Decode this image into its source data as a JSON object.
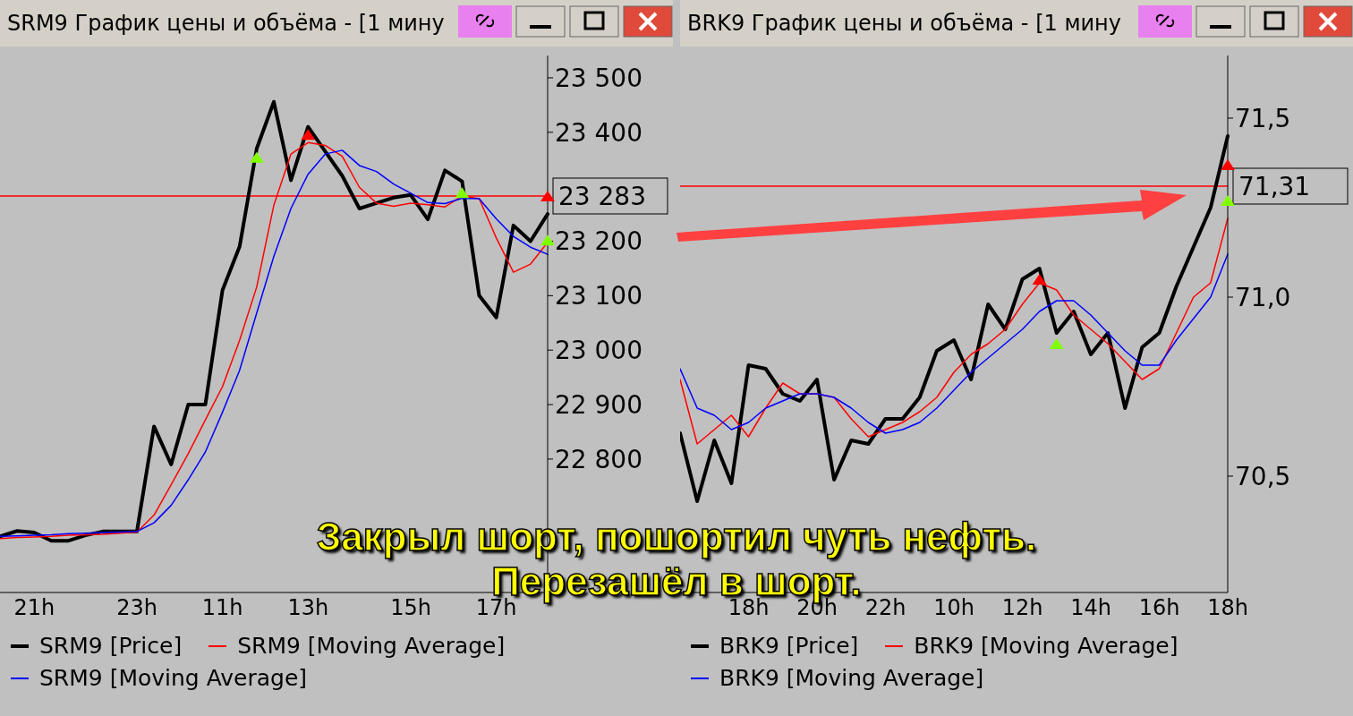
{
  "chart_data": [
    {
      "type": "line",
      "title": "SRM9 График цены и объёма - [1 мину",
      "categories": [
        null,
        null,
        "21h",
        null,
        null,
        null,
        null,
        null,
        "23h",
        null,
        null,
        null,
        null,
        "11h",
        null,
        null,
        null,
        null,
        "13h",
        null,
        null,
        null,
        null,
        null,
        "15h",
        null,
        null,
        null,
        null,
        "17h",
        null,
        null,
        null
      ],
      "ylim": [
        22555,
        23541
      ],
      "yticks": [
        {
          "value": 23500,
          "label": "23 500"
        },
        {
          "value": 23400,
          "label": "23 400"
        },
        {
          "value": 23200,
          "label": "23 200"
        },
        {
          "value": 23100,
          "label": "23 100"
        },
        {
          "value": 23000,
          "label": "23 000"
        },
        {
          "value": 22900,
          "label": "22 900"
        },
        {
          "value": 22800,
          "label": "22 800"
        }
      ],
      "legend": "bottom",
      "ref_lines": [
        {
          "axis": "y",
          "value": 23283,
          "label": "23 283",
          "color": "#ff0000"
        }
      ],
      "annotations": [
        "Закрыл шорт, пошортил чуть нефть.",
        "Перезашёл в шорт."
      ],
      "series": [
        {
          "name": "SRM9 [Price]",
          "color": "#000000",
          "values": [
            22658,
            22668,
            22665,
            22650,
            22650,
            22660,
            22667,
            22667,
            22667,
            22860,
            22790,
            22900,
            22900,
            23110,
            23190,
            23370,
            23456,
            23312,
            23410,
            23365,
            23320,
            23260,
            23270,
            23280,
            23285,
            23240,
            23330,
            23310,
            23100,
            23060,
            23229,
            23200,
            23250
          ]
        },
        {
          "name": "SRM9 [Moving Average]",
          "color": "#ff0000",
          "values": [
            22654,
            22656,
            22657,
            22658,
            22660,
            22661,
            22662,
            22664,
            22666,
            22697,
            22753,
            22810,
            22872,
            22933,
            23018,
            23116,
            23266,
            23360,
            23381,
            23376,
            23356,
            23299,
            23270,
            23264,
            23270,
            23267,
            23263,
            23283,
            23278,
            23206,
            23143,
            23158,
            23198
          ]
        },
        {
          "name": "SRM9 [Moving Average]",
          "color": "#0000ff",
          "values": [
            22658,
            22659,
            22660,
            22661,
            22663,
            22664,
            22665,
            22666,
            22667,
            22683,
            22715,
            22762,
            22813,
            22886,
            22963,
            23068,
            23172,
            23260,
            23323,
            23360,
            23367,
            23339,
            23328,
            23305,
            23288,
            23271,
            23269,
            23279,
            23278,
            23241,
            23209,
            23189,
            23176
          ]
        },
        {
          "type": "scatter",
          "marker": "triangle",
          "color": "#80ff00",
          "values": [
            null,
            null,
            null,
            null,
            null,
            null,
            null,
            null,
            null,
            null,
            null,
            null,
            null,
            null,
            null,
            23354,
            null,
            null,
            null,
            null,
            null,
            null,
            null,
            null,
            null,
            null,
            null,
            23289,
            null,
            null,
            null,
            null,
            23202
          ]
        },
        {
          "type": "scatter",
          "marker": "triangle",
          "color": "#ff0000",
          "values": [
            null,
            null,
            null,
            null,
            null,
            null,
            null,
            null,
            null,
            null,
            null,
            null,
            null,
            null,
            null,
            null,
            null,
            null,
            23396,
            null,
            null,
            null,
            null,
            null,
            null,
            null,
            null,
            null,
            null,
            null,
            null,
            null,
            23283
          ]
        }
      ]
    },
    {
      "type": "line",
      "title": "BRK9 График цены и объёма - [1 мину",
      "categories": [
        null,
        null,
        null,
        null,
        "18h",
        null,
        null,
        null,
        "20h",
        null,
        null,
        null,
        "22h",
        null,
        null,
        null,
        "10h",
        null,
        null,
        null,
        "12h",
        null,
        null,
        null,
        "14h",
        null,
        null,
        null,
        "16h",
        null,
        null,
        null,
        "18h"
      ],
      "ylim": [
        70.175,
        71.675
      ],
      "yticks": [
        {
          "value": 71.5,
          "label": "71,5"
        },
        {
          "value": 71,
          "label": "71,0"
        },
        {
          "value": 70.5,
          "label": "70,5"
        }
      ],
      "legend": "bottom",
      "ref_lines": [
        {
          "axis": "y",
          "value": 71.31,
          "label": "71,31",
          "color": "#ff0000"
        }
      ],
      "series": [
        {
          "name": "BRK9 [Price]",
          "color": "#000000",
          "values": [
            70.62,
            70.43,
            70.6,
            70.48,
            70.81,
            70.8,
            70.73,
            70.71,
            70.77,
            70.49,
            70.6,
            70.59,
            70.66,
            70.66,
            70.72,
            70.85,
            70.88,
            70.77,
            70.98,
            70.91,
            71.05,
            71.08,
            70.9,
            70.96,
            70.84,
            70.9,
            70.69,
            70.86,
            70.9,
            71.03,
            71.14,
            71.25,
            71.45
          ]
        },
        {
          "name": "BRK9 [Moving Average]",
          "color": "#ff0000",
          "values": [
            70.77,
            70.59,
            70.63,
            70.67,
            70.61,
            70.69,
            70.76,
            70.73,
            70.73,
            70.72,
            70.66,
            70.61,
            70.63,
            70.65,
            70.68,
            70.72,
            70.79,
            70.84,
            70.87,
            70.91,
            70.98,
            71.04,
            71.02,
            70.95,
            70.91,
            70.87,
            70.82,
            70.77,
            70.8,
            70.9,
            71,
            71.04,
            71.22
          ]
        },
        {
          "name": "BRK9 [Moving Average]",
          "color": "#0000ff",
          "values": [
            70.8,
            70.69,
            70.67,
            70.63,
            70.65,
            70.69,
            70.71,
            70.73,
            70.73,
            70.72,
            70.69,
            70.65,
            70.62,
            70.63,
            70.65,
            70.69,
            70.74,
            70.79,
            70.83,
            70.87,
            70.91,
            70.96,
            70.99,
            70.99,
            70.95,
            70.9,
            70.85,
            70.81,
            70.81,
            70.88,
            70.94,
            71,
            71.12
          ]
        },
        {
          "type": "scatter",
          "marker": "triangle",
          "color": "#80ff00",
          "values": [
            null,
            null,
            null,
            null,
            null,
            null,
            null,
            null,
            null,
            null,
            null,
            null,
            null,
            null,
            null,
            null,
            null,
            null,
            null,
            null,
            null,
            null,
            70.87,
            null,
            null,
            null,
            null,
            null,
            null,
            null,
            null,
            null,
            71.27
          ]
        },
        {
          "type": "scatter",
          "marker": "triangle",
          "color": "#ff0000",
          "values": [
            null,
            null,
            null,
            null,
            null,
            null,
            null,
            null,
            null,
            null,
            null,
            null,
            null,
            null,
            null,
            null,
            null,
            null,
            null,
            null,
            null,
            71.05,
            null,
            null,
            null,
            null,
            null,
            null,
            null,
            null,
            null,
            null,
            71.37
          ]
        }
      ]
    }
  ]
}
